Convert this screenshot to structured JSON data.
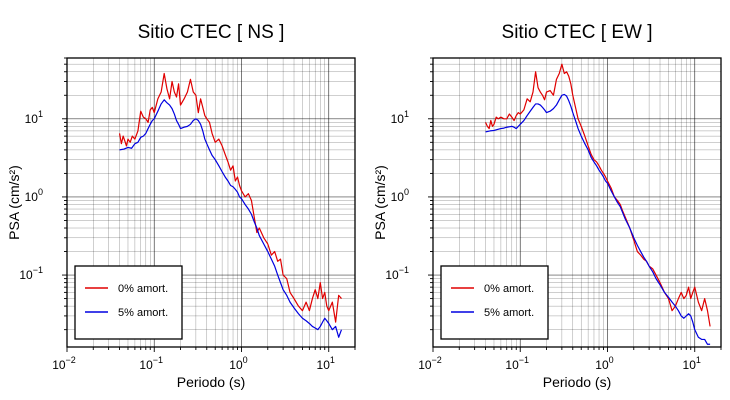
{
  "chart_data": [
    {
      "type": "line",
      "title": "Sitio CTEC [ NS ]",
      "xlabel": "Periodo (s)",
      "ylabel": "PSA (cm/s²)",
      "xscale": "log",
      "yscale": "log",
      "xlim": [
        0.01,
        20
      ],
      "ylim": [
        0.012,
        60
      ],
      "grid": true,
      "legend_position": "bottom-left",
      "x_ticks": [
        {
          "base": "10",
          "exp": "−2"
        },
        {
          "base": "10",
          "exp": "−1"
        },
        {
          "base": "10",
          "exp": "0"
        },
        {
          "base": "10",
          "exp": "1"
        }
      ],
      "y_ticks": [
        {
          "base": "10",
          "exp": "−1"
        },
        {
          "base": "10",
          "exp": "0"
        },
        {
          "base": "10",
          "exp": "1"
        }
      ],
      "series": [
        {
          "name": "0% amort.",
          "color": "#e00000",
          "x": [
            0.04,
            0.042,
            0.044,
            0.046,
            0.048,
            0.05,
            0.053,
            0.056,
            0.06,
            0.065,
            0.07,
            0.075,
            0.08,
            0.085,
            0.09,
            0.095,
            0.1,
            0.11,
            0.12,
            0.13,
            0.14,
            0.15,
            0.16,
            0.17,
            0.18,
            0.19,
            0.2,
            0.22,
            0.24,
            0.26,
            0.28,
            0.3,
            0.32,
            0.34,
            0.36,
            0.38,
            0.4,
            0.43,
            0.46,
            0.5,
            0.55,
            0.6,
            0.65,
            0.7,
            0.75,
            0.8,
            0.85,
            0.9,
            0.95,
            1.0,
            1.1,
            1.2,
            1.3,
            1.4,
            1.5,
            1.6,
            1.8,
            2.0,
            2.2,
            2.4,
            2.6,
            2.8,
            3.0,
            3.3,
            3.6,
            4.0,
            4.5,
            5.0,
            5.5,
            6.0,
            6.5,
            7.0,
            7.5,
            8.0,
            8.5,
            9.0,
            9.5,
            10.0,
            11.0,
            12.0,
            13.0,
            14.0
          ],
          "y": [
            6.5,
            4.8,
            6.0,
            5.2,
            4.5,
            5.5,
            5.0,
            6.0,
            5.5,
            7.0,
            12.5,
            10.5,
            10.0,
            9.0,
            13.0,
            14.0,
            12.0,
            18.0,
            22.0,
            38.0,
            24.0,
            18.0,
            30.0,
            22.0,
            19.0,
            28.0,
            15.0,
            18.0,
            22.0,
            32.0,
            22.0,
            20.0,
            12.0,
            18.0,
            14.0,
            11.0,
            10.0,
            9.0,
            6.5,
            5.0,
            5.5,
            4.5,
            3.5,
            2.8,
            2.2,
            2.5,
            1.6,
            1.8,
            1.4,
            1.2,
            1.0,
            1.1,
            0.9,
            0.55,
            0.35,
            0.4,
            0.3,
            0.25,
            0.18,
            0.2,
            0.15,
            0.16,
            0.1,
            0.09,
            0.06,
            0.05,
            0.04,
            0.035,
            0.045,
            0.035,
            0.05,
            0.065,
            0.05,
            0.08,
            0.05,
            0.06,
            0.04,
            0.035,
            0.045,
            0.025,
            0.055,
            0.05
          ]
        },
        {
          "name": "5% amort.",
          "color": "#0000e0",
          "x": [
            0.04,
            0.045,
            0.05,
            0.055,
            0.06,
            0.065,
            0.07,
            0.075,
            0.08,
            0.085,
            0.09,
            0.095,
            0.1,
            0.11,
            0.12,
            0.13,
            0.14,
            0.15,
            0.16,
            0.17,
            0.18,
            0.19,
            0.2,
            0.22,
            0.24,
            0.26,
            0.28,
            0.3,
            0.32,
            0.34,
            0.36,
            0.38,
            0.4,
            0.43,
            0.46,
            0.5,
            0.55,
            0.6,
            0.65,
            0.7,
            0.75,
            0.8,
            0.85,
            0.9,
            0.95,
            1.0,
            1.1,
            1.2,
            1.3,
            1.4,
            1.5,
            1.6,
            1.8,
            2.0,
            2.2,
            2.4,
            2.6,
            2.8,
            3.0,
            3.3,
            3.6,
            4.0,
            4.5,
            5.0,
            5.5,
            6.0,
            6.5,
            7.0,
            7.5,
            8.0,
            8.5,
            9.0,
            9.5,
            10.0,
            11.0,
            12.0,
            13.0,
            14.0
          ],
          "y": [
            4.0,
            4.1,
            4.3,
            4.2,
            4.8,
            5.0,
            5.8,
            6.0,
            6.5,
            7.5,
            8.5,
            9.5,
            10.0,
            12.5,
            15.5,
            17.5,
            16.0,
            15.0,
            13.5,
            11.5,
            9.5,
            8.5,
            7.5,
            7.8,
            8.0,
            8.5,
            9.5,
            10.0,
            9.5,
            8.5,
            7.0,
            5.5,
            4.8,
            4.0,
            3.4,
            3.0,
            2.5,
            2.1,
            1.8,
            1.6,
            1.4,
            1.35,
            1.25,
            1.15,
            1.0,
            0.95,
            0.8,
            0.7,
            0.6,
            0.48,
            0.4,
            0.32,
            0.25,
            0.2,
            0.16,
            0.13,
            0.1,
            0.08,
            0.065,
            0.055,
            0.045,
            0.038,
            0.032,
            0.028,
            0.026,
            0.024,
            0.022,
            0.021,
            0.02,
            0.022,
            0.025,
            0.028,
            0.026,
            0.024,
            0.02,
            0.022,
            0.016,
            0.02
          ]
        }
      ]
    },
    {
      "type": "line",
      "title": "Sitio CTEC [ EW ]",
      "xlabel": "Periodo (s)",
      "ylabel": "PSA (cm/s²)",
      "xscale": "log",
      "yscale": "log",
      "xlim": [
        0.01,
        20
      ],
      "ylim": [
        0.012,
        60
      ],
      "grid": true,
      "legend_position": "bottom-left",
      "x_ticks": [
        {
          "base": "10",
          "exp": "−2"
        },
        {
          "base": "10",
          "exp": "−1"
        },
        {
          "base": "10",
          "exp": "0"
        },
        {
          "base": "10",
          "exp": "1"
        }
      ],
      "y_ticks": [
        {
          "base": "10",
          "exp": "−1"
        },
        {
          "base": "10",
          "exp": "0"
        },
        {
          "base": "10",
          "exp": "1"
        }
      ],
      "series": [
        {
          "name": "0% amort.",
          "color": "#e00000",
          "x": [
            0.04,
            0.042,
            0.044,
            0.046,
            0.048,
            0.05,
            0.053,
            0.056,
            0.06,
            0.065,
            0.07,
            0.075,
            0.08,
            0.085,
            0.09,
            0.095,
            0.1,
            0.11,
            0.12,
            0.13,
            0.14,
            0.15,
            0.16,
            0.17,
            0.18,
            0.19,
            0.2,
            0.22,
            0.24,
            0.26,
            0.28,
            0.3,
            0.32,
            0.34,
            0.36,
            0.38,
            0.4,
            0.43,
            0.46,
            0.5,
            0.55,
            0.6,
            0.65,
            0.7,
            0.75,
            0.8,
            0.85,
            0.9,
            0.95,
            1.0,
            1.1,
            1.2,
            1.3,
            1.4,
            1.5,
            1.6,
            1.8,
            2.0,
            2.2,
            2.4,
            2.6,
            2.8,
            3.0,
            3.3,
            3.6,
            4.0,
            4.5,
            5.0,
            5.5,
            6.0,
            6.5,
            7.0,
            7.5,
            8.0,
            8.5,
            9.0,
            9.5,
            10.0,
            11.0,
            12.0,
            13.0,
            14.0,
            15.0
          ],
          "y": [
            9.0,
            8.0,
            7.5,
            9.5,
            8.0,
            8.5,
            10.5,
            10.0,
            10.5,
            10.0,
            10.0,
            11.5,
            10.5,
            9.5,
            11.0,
            12.0,
            11.5,
            13.0,
            18.0,
            16.5,
            22.0,
            40.0,
            25.0,
            22.0,
            20.0,
            17.5,
            22.0,
            23.0,
            20.0,
            32.0,
            38.0,
            50.0,
            38.0,
            40.0,
            35.0,
            28.0,
            20.0,
            14.0,
            10.0,
            8.0,
            6.0,
            4.5,
            3.5,
            3.0,
            2.8,
            2.5,
            2.2,
            2.0,
            1.8,
            1.6,
            1.3,
            1.0,
            0.9,
            0.8,
            0.65,
            0.55,
            0.4,
            0.28,
            0.2,
            0.18,
            0.16,
            0.15,
            0.13,
            0.12,
            0.1,
            0.08,
            0.06,
            0.05,
            0.035,
            0.04,
            0.05,
            0.06,
            0.05,
            0.055,
            0.07,
            0.05,
            0.06,
            0.07,
            0.045,
            0.035,
            0.05,
            0.035,
            0.022
          ]
        },
        {
          "name": "5% amort.",
          "color": "#0000e0",
          "x": [
            0.04,
            0.045,
            0.05,
            0.055,
            0.06,
            0.065,
            0.07,
            0.075,
            0.08,
            0.085,
            0.09,
            0.095,
            0.1,
            0.11,
            0.12,
            0.13,
            0.14,
            0.15,
            0.16,
            0.17,
            0.18,
            0.19,
            0.2,
            0.22,
            0.24,
            0.26,
            0.28,
            0.3,
            0.32,
            0.34,
            0.36,
            0.38,
            0.4,
            0.43,
            0.46,
            0.5,
            0.55,
            0.6,
            0.65,
            0.7,
            0.75,
            0.8,
            0.85,
            0.9,
            0.95,
            1.0,
            1.1,
            1.2,
            1.3,
            1.4,
            1.5,
            1.6,
            1.8,
            2.0,
            2.2,
            2.4,
            2.6,
            2.8,
            3.0,
            3.3,
            3.6,
            4.0,
            4.5,
            5.0,
            5.5,
            6.0,
            6.5,
            7.0,
            7.5,
            8.0,
            8.5,
            9.0,
            9.5,
            10.0,
            11.0,
            12.0,
            13.0,
            14.0,
            15.0
          ],
          "y": [
            6.8,
            7.0,
            7.1,
            7.3,
            7.5,
            7.6,
            7.8,
            7.9,
            8.0,
            7.8,
            7.5,
            8.0,
            8.5,
            9.5,
            11.0,
            12.5,
            14.0,
            15.5,
            15.5,
            15.0,
            14.0,
            13.0,
            12.0,
            12.5,
            13.5,
            15.0,
            17.5,
            20.0,
            20.5,
            19.5,
            17.0,
            14.5,
            12.0,
            9.5,
            7.5,
            6.0,
            4.8,
            4.0,
            3.2,
            2.8,
            2.5,
            2.2,
            2.0,
            1.8,
            1.6,
            1.5,
            1.2,
            1.0,
            0.85,
            0.75,
            0.62,
            0.52,
            0.4,
            0.3,
            0.24,
            0.2,
            0.17,
            0.15,
            0.13,
            0.11,
            0.09,
            0.075,
            0.06,
            0.052,
            0.045,
            0.04,
            0.035,
            0.03,
            0.028,
            0.03,
            0.032,
            0.03,
            0.025,
            0.02,
            0.016,
            0.015,
            0.015,
            0.013,
            0.013
          ]
        }
      ]
    }
  ]
}
